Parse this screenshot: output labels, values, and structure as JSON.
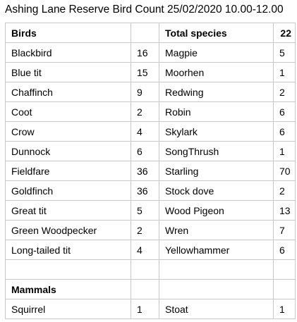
{
  "title": "Ashing Lane Reserve Bird Count 25/02/2020 10.00-12.00",
  "birds_header": "Birds",
  "total_species_label": "Total species",
  "total_species_value": "22",
  "rows": [
    {
      "bird1": "Blackbird",
      "count1": "16",
      "bird2": "Magpie",
      "count2": "5"
    },
    {
      "bird1": "Blue tit",
      "count1": "15",
      "bird2": "Moorhen",
      "count2": "1"
    },
    {
      "bird1": "Chaffinch",
      "count1": "9",
      "bird2": "Redwing",
      "count2": "2"
    },
    {
      "bird1": "Coot",
      "count1": "2",
      "bird2": "Robin",
      "count2": "6"
    },
    {
      "bird1": "Crow",
      "count1": "4",
      "bird2": "Skylark",
      "count2": "6"
    },
    {
      "bird1": "Dunnock",
      "count1": "6",
      "bird2": "SongThrush",
      "count2": "1"
    },
    {
      "bird1": "Fieldfare",
      "count1": "36",
      "bird2": "Starling",
      "count2": "70"
    },
    {
      "bird1": "Goldfinch",
      "count1": "36",
      "bird2": "Stock dove",
      "count2": "2"
    },
    {
      "bird1": "Great tit",
      "count1": "5",
      "bird2": "Wood Pigeon",
      "count2": "13"
    },
    {
      "bird1": "Green Woodpecker",
      "count1": "2",
      "bird2": "Wren",
      "count2": "7"
    },
    {
      "bird1": "Long-tailed tit",
      "count1": "4",
      "bird2": "Yellowhammer",
      "count2": "6"
    }
  ],
  "mammals_header": "Mammals",
  "mammals": [
    {
      "name1": "Squirrel",
      "count1": "1",
      "name2": "Stoat",
      "count2": "1"
    }
  ]
}
